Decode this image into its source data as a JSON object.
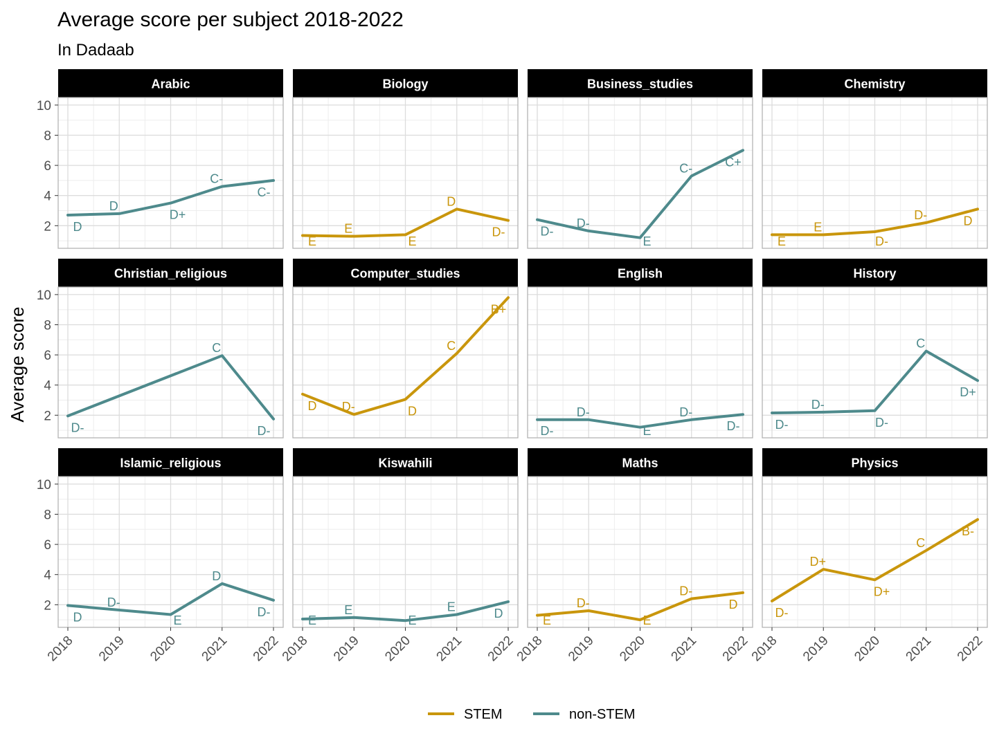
{
  "chart_data": {
    "type": "line",
    "title": "Average score per subject 2018-2022",
    "subtitle": "In Dadaab",
    "ylabel": "Average score",
    "xlabel": "",
    "x": [
      "2018",
      "2019",
      "2020",
      "2021",
      "2022"
    ],
    "ylim": [
      0.5,
      10.5
    ],
    "yticks": [
      2,
      4,
      6,
      8,
      10
    ],
    "grid": true,
    "legend_position": "bottom",
    "legend": [
      {
        "label": "STEM",
        "color": "#C9960C"
      },
      {
        "label": "non-STEM",
        "color": "#4E8A8C"
      }
    ],
    "panels": [
      {
        "name": "Arabic",
        "group": "non-STEM",
        "values": [
          2.7,
          2.8,
          3.5,
          4.6,
          5.0
        ],
        "grades": [
          "D",
          "D",
          "D+",
          "C-",
          "C-"
        ]
      },
      {
        "name": "Biology",
        "group": "STEM",
        "values": [
          1.35,
          1.3,
          1.4,
          3.1,
          2.35
        ],
        "grades": [
          "E",
          "E",
          "E",
          "D",
          "D-"
        ]
      },
      {
        "name": "Business_studies",
        "group": "non-STEM",
        "values": [
          2.4,
          1.65,
          1.2,
          5.3,
          7.0
        ],
        "grades": [
          "D-",
          "D-",
          "E",
          "C-",
          "C+"
        ]
      },
      {
        "name": "Chemistry",
        "group": "STEM",
        "values": [
          1.4,
          1.4,
          1.6,
          2.2,
          3.1
        ],
        "grades": [
          "E",
          "E",
          "D-",
          "D-",
          "D"
        ]
      },
      {
        "name": "Christian_religious",
        "group": "non-STEM",
        "values": [
          1.95,
          null,
          null,
          5.95,
          1.75
        ],
        "grades": [
          "D-",
          null,
          null,
          "C",
          "D-"
        ]
      },
      {
        "name": "Computer_studies",
        "group": "STEM",
        "values": [
          3.4,
          2.05,
          3.05,
          6.1,
          9.8
        ],
        "grades": [
          "D",
          "D-",
          "D",
          "C",
          "B+"
        ]
      },
      {
        "name": "English",
        "group": "non-STEM",
        "values": [
          1.7,
          1.7,
          1.2,
          1.7,
          2.05
        ],
        "grades": [
          "D-",
          "D-",
          "E",
          "D-",
          "D-"
        ]
      },
      {
        "name": "History",
        "group": "non-STEM",
        "values": [
          2.15,
          2.2,
          2.3,
          6.25,
          4.3
        ],
        "grades": [
          "D-",
          "D-",
          "D-",
          "C",
          "D+"
        ]
      },
      {
        "name": "Islamic_religious",
        "group": "non-STEM",
        "values": [
          1.95,
          null,
          1.35,
          3.4,
          2.3
        ],
        "grades": [
          "D",
          "D-",
          "E",
          "D",
          "D-"
        ]
      },
      {
        "name": "Kiswahili",
        "group": "non-STEM",
        "values": [
          1.05,
          1.15,
          0.95,
          1.35,
          2.2
        ],
        "grades": [
          "E",
          "E",
          "E",
          "E",
          "D"
        ]
      },
      {
        "name": "Maths",
        "group": "STEM",
        "values": [
          1.3,
          1.6,
          1.0,
          2.4,
          2.8
        ],
        "grades": [
          "E",
          "D-",
          "E",
          "D-",
          "D"
        ]
      },
      {
        "name": "Physics",
        "group": "STEM",
        "values": [
          2.25,
          4.35,
          3.65,
          5.6,
          7.65
        ],
        "grades": [
          "D-",
          "D+",
          "D+",
          "C",
          "B-"
        ]
      }
    ]
  }
}
